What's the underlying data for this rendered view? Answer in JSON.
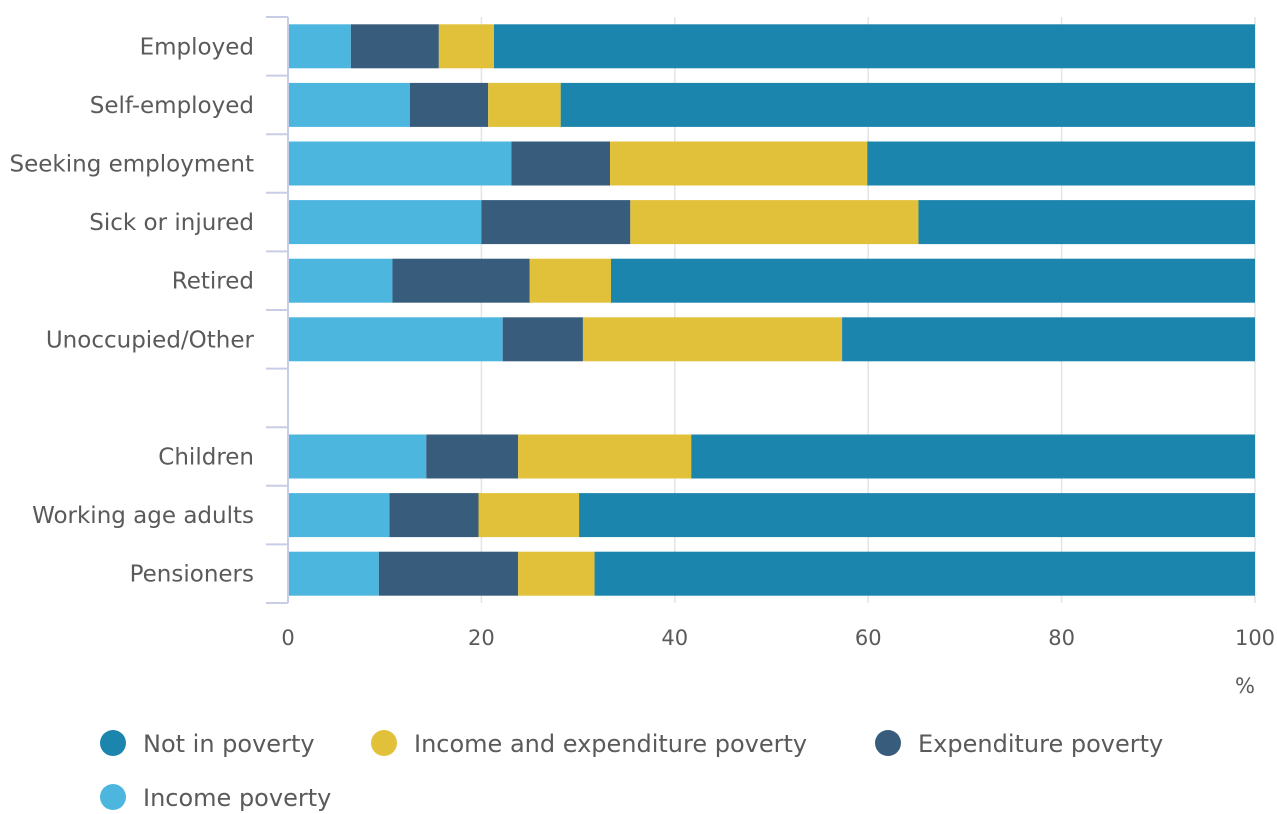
{
  "chart_data": {
    "type": "bar",
    "orientation": "horizontal",
    "stacked": true,
    "categories": [
      "Employed",
      "Self-employed",
      "Seeking employment",
      "Sick or injured",
      "Retired",
      "Unoccupied/Other",
      "",
      "Children",
      "Working age adults",
      "Pensioners"
    ],
    "series": [
      {
        "name": "Income poverty",
        "color": "#4db6df",
        "values": [
          6.5,
          12.6,
          23.1,
          20.0,
          10.8,
          22.2,
          null,
          14.3,
          10.5,
          9.4
        ]
      },
      {
        "name": "Expenditure poverty",
        "color": "#375c7c",
        "values": [
          9.1,
          8.1,
          10.2,
          15.4,
          14.2,
          8.3,
          null,
          9.5,
          9.2,
          14.4
        ]
      },
      {
        "name": "Income and expenditure poverty",
        "color": "#e2c13a",
        "values": [
          5.7,
          7.5,
          26.6,
          29.8,
          8.4,
          26.8,
          null,
          17.9,
          10.4,
          7.9
        ]
      },
      {
        "name": "Not in poverty",
        "color": "#1c85ad",
        "values": [
          78.7,
          71.8,
          40.1,
          34.8,
          66.6,
          42.7,
          null,
          58.3,
          69.9,
          68.3
        ]
      }
    ],
    "xlim": [
      0,
      100
    ],
    "xticks": [
      "0",
      "20",
      "40",
      "60",
      "80",
      "100"
    ],
    "xunit": "%",
    "grid": true,
    "legend_order": [
      "Not in poverty",
      "Income and expenditure poverty",
      "Expenditure poverty",
      "Income poverty"
    ],
    "legend_position": "bottom"
  }
}
